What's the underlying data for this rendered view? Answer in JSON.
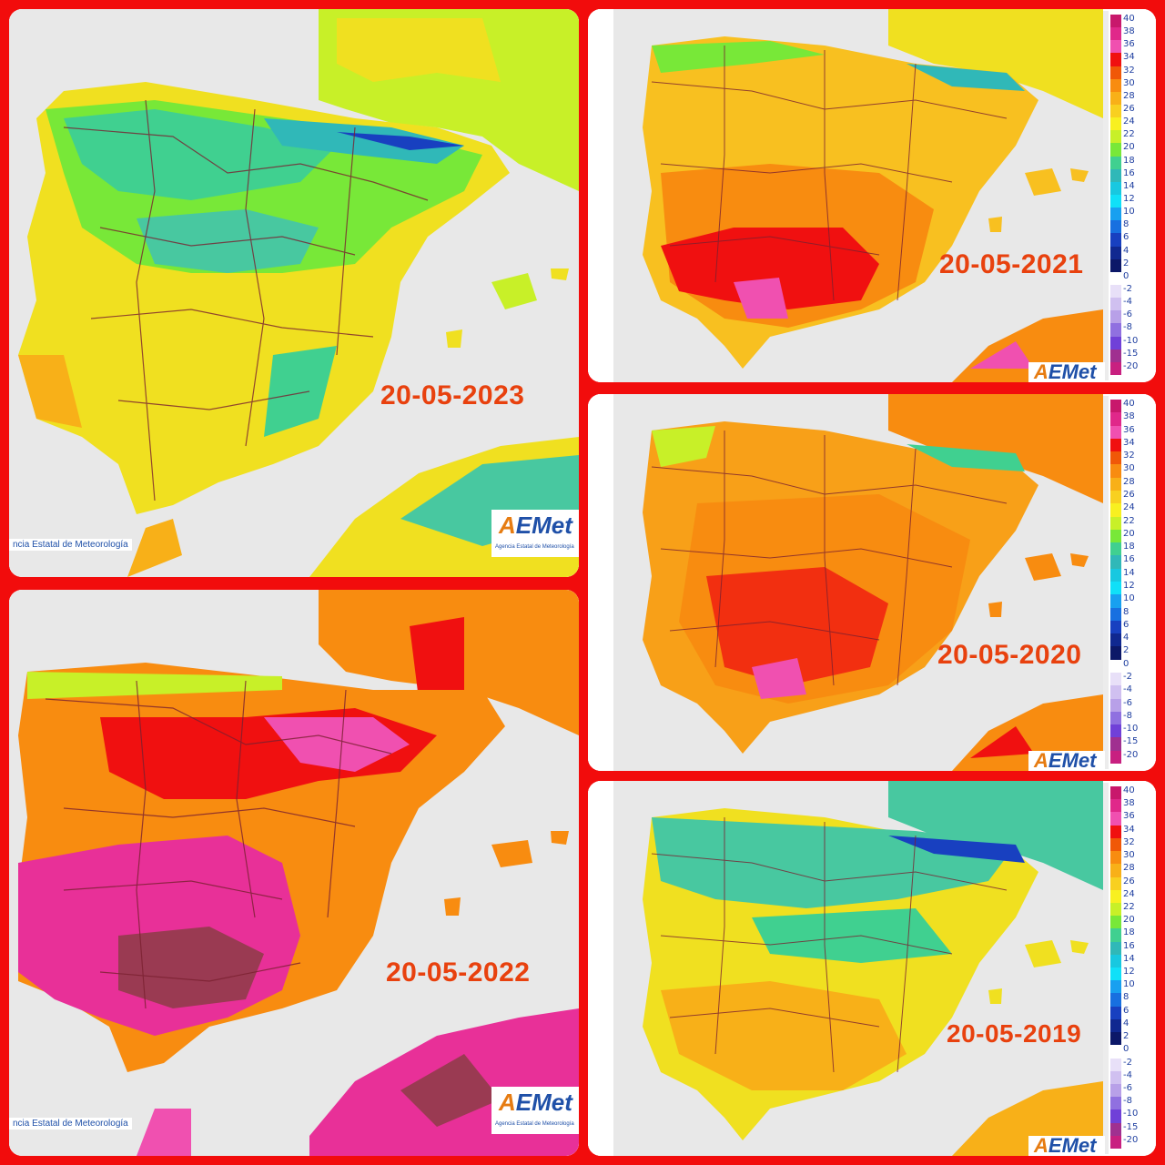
{
  "date_labels": {
    "p2023": "20-05-2023",
    "p2022": "20-05-2022",
    "p2021": "20-05-2021",
    "p2020": "20-05-2020",
    "p2019": "20-05-2019"
  },
  "credit_text": "ncia Estatal de Meteorología",
  "aemet": {
    "logo_a": "A",
    "logo_rest": "EMet",
    "subtitle": "Agencia Estatal de Meteorología"
  },
  "legend_labels": [
    "40",
    "38",
    "36",
    "34",
    "32",
    "30",
    "28",
    "26",
    "24",
    "22",
    "20",
    "18",
    "16",
    "14",
    "12",
    "10",
    "8",
    "6",
    "4",
    "2",
    "0",
    "-2",
    "-4",
    "-6",
    "-8",
    "-10",
    "-15",
    "-20"
  ],
  "legend_colors": [
    "#c8186c",
    "#e0288a",
    "#f050b0",
    "#f01010",
    "#f05808",
    "#f88c10",
    "#f8b018",
    "#f8d020",
    "#f8f020",
    "#c8f028",
    "#78e838",
    "#40d090",
    "#30b8b8",
    "#18c8e0",
    "#10e0f8",
    "#18a0f0",
    "#1870e0",
    "#1840c0",
    "#102890",
    "#0c1868",
    "#ffffff",
    "#e8e0f8",
    "#d0c0f0",
    "#b8a0e8",
    "#9070e0",
    "#7040d8",
    "#a03090",
    "#c82080"
  ],
  "map_colors": {
    "p2023": {
      "base": "#f0e020",
      "warm": "#f8b018",
      "cool": "#48c8a0",
      "cold": "#1840c0",
      "sea": "#e8e8e8"
    },
    "p2022": {
      "base": "#f88c10",
      "warm": "#f01010",
      "hot": "#e83098",
      "extreme": "#9a3a52",
      "sea": "#e8e8e8"
    },
    "p2021": {
      "base": "#f8c020",
      "warm": "#f88c10",
      "hot": "#f01010",
      "extreme": "#f050b0",
      "sea": "#e8e8e8"
    },
    "p2020": {
      "base": "#f8a018",
      "warm": "#f88c10",
      "hot": "#f01010",
      "extreme": "#f050b0",
      "sea": "#e8e8e8"
    },
    "p2019": {
      "base": "#f0e020",
      "warm": "#f8b018",
      "cool": "#48c8a0",
      "cold": "#1840c0",
      "sea": "#e8e8e8"
    }
  }
}
